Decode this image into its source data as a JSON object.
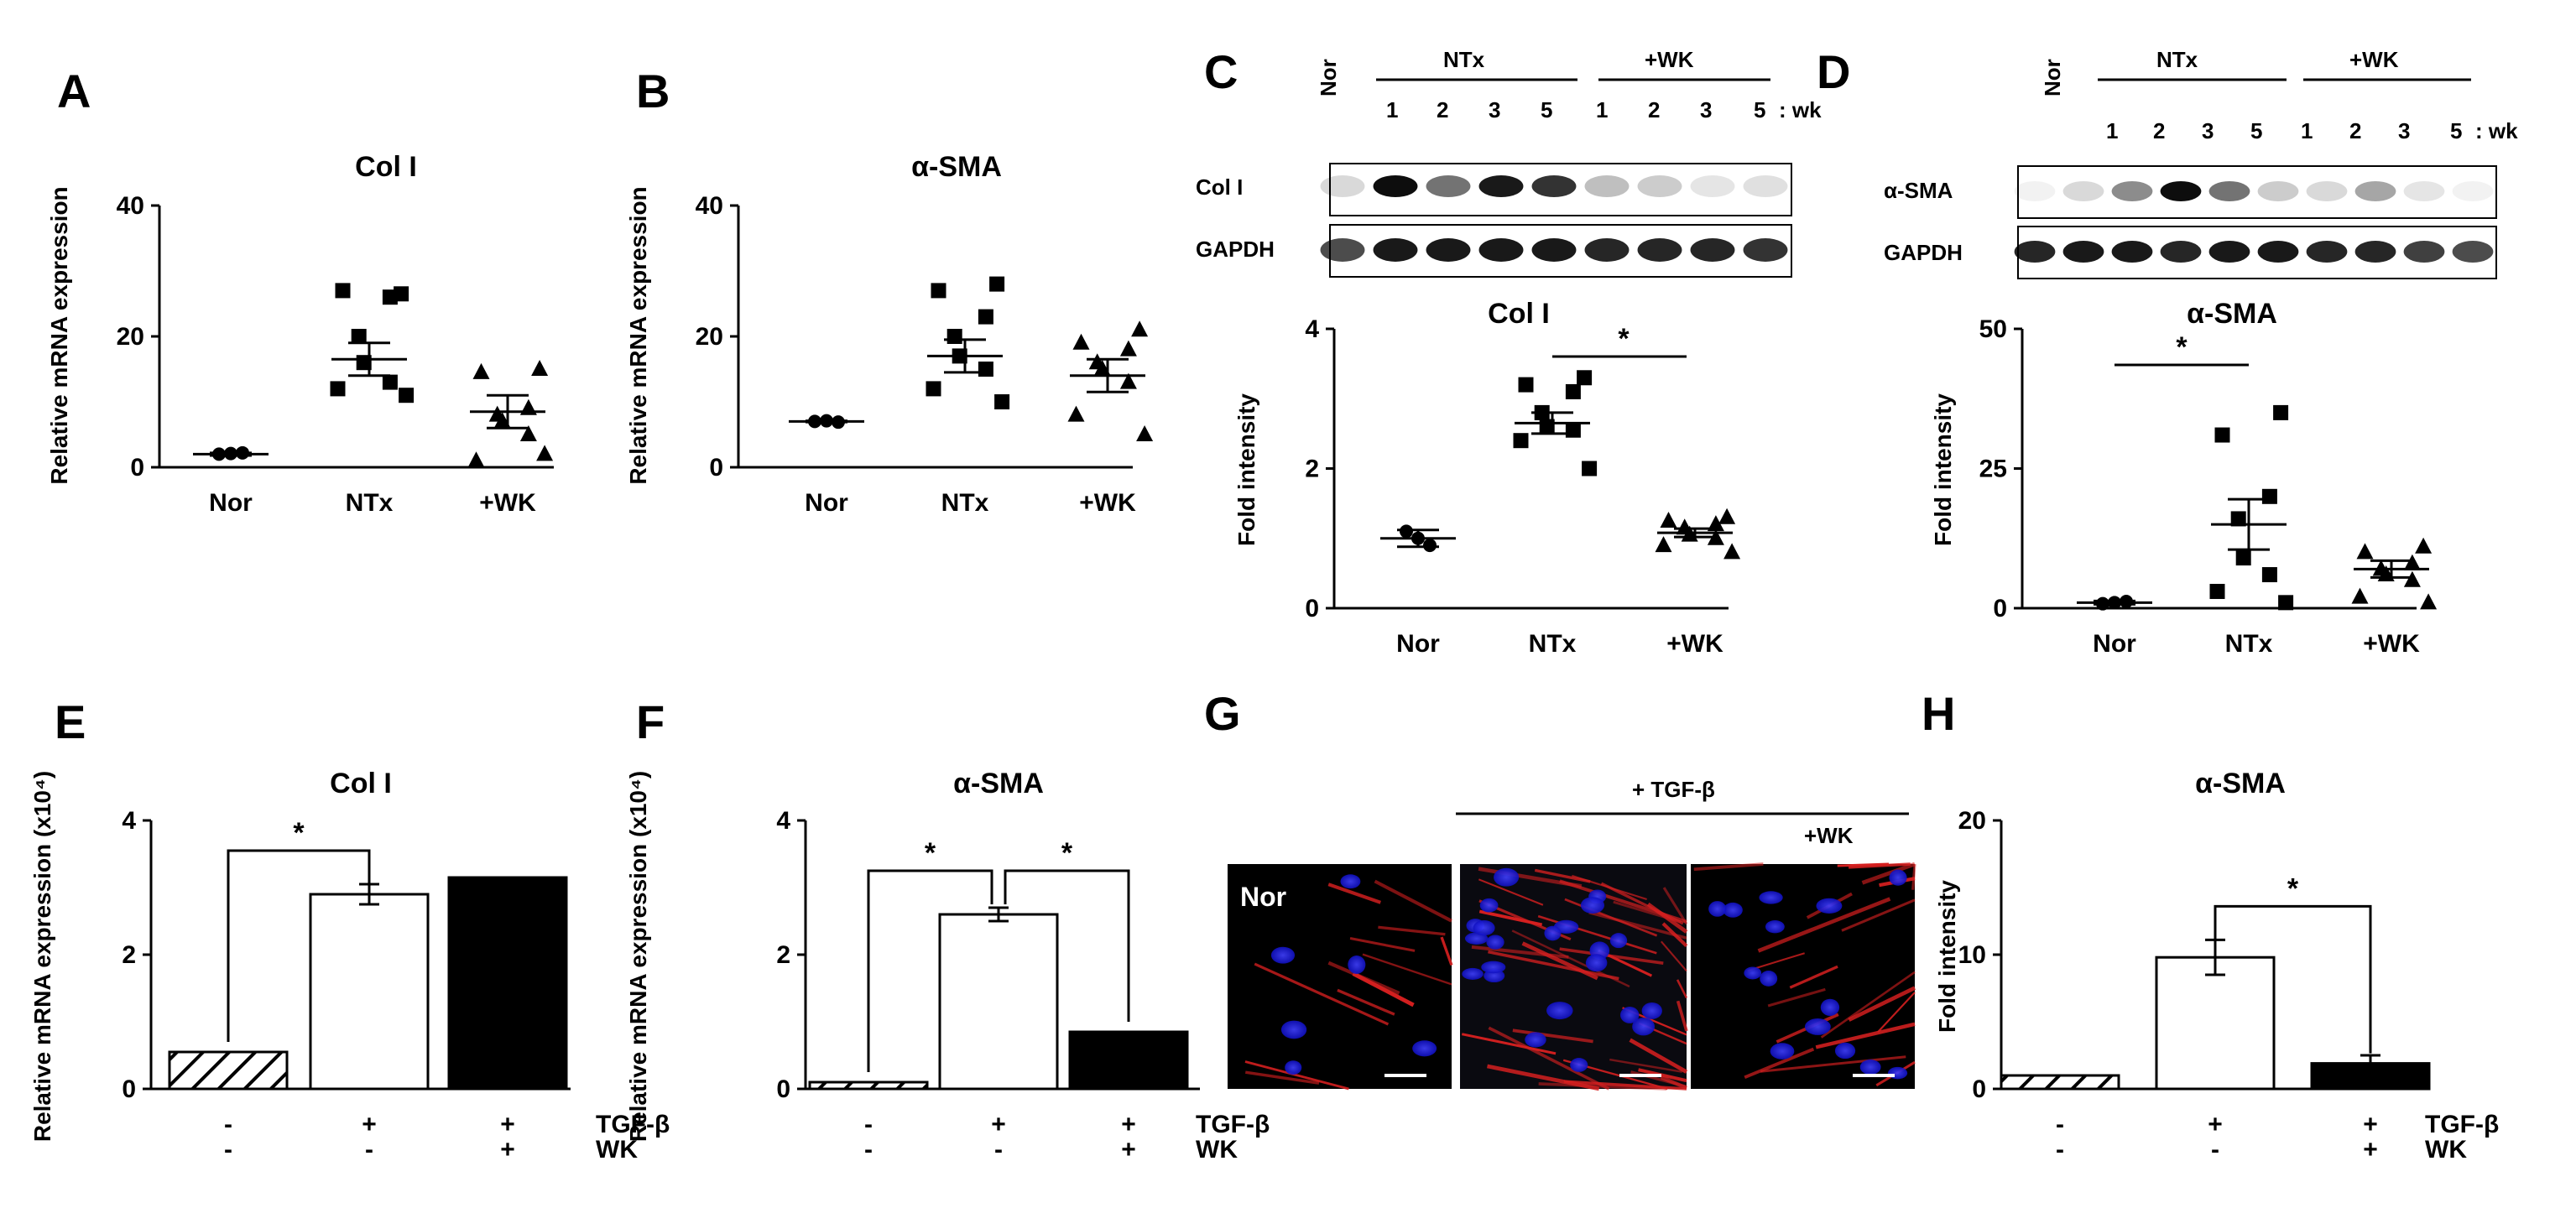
{
  "colors": {
    "blue_nuclei": "#2a2cff",
    "red_actin": "#d62020",
    "bar_black": "#000000",
    "bar_white": "#ffffff"
  },
  "panels": {
    "A": {
      "label": "A"
    },
    "B": {
      "label": "B"
    },
    "C": {
      "label": "C",
      "blot": {
        "lane_groups": [
          "NTx",
          "+WK"
        ],
        "lanes": [
          "Nor",
          "1",
          "2",
          "3",
          "5",
          "1",
          "2",
          "3",
          "5"
        ],
        "suffix": ": wk",
        "rows": [
          "Col I",
          "GAPDH"
        ]
      }
    },
    "D": {
      "label": "D",
      "blot": {
        "lane_groups": [
          "NTx",
          "+WK"
        ],
        "lanes": [
          "Nor",
          "1",
          "2",
          "3",
          "5",
          "1",
          "2",
          "3",
          "5"
        ],
        "suffix": ": wk",
        "rows": [
          "α-SMA",
          "GAPDH"
        ]
      }
    },
    "E": {
      "label": "E"
    },
    "F": {
      "label": "F"
    },
    "G": {
      "label": "G",
      "header": "+ TGF-β",
      "sub": "+WK",
      "panel_labels": [
        "Nor"
      ]
    },
    "H": {
      "label": "H"
    }
  },
  "chart_data": [
    {
      "id": "A",
      "type": "scatter",
      "title": "Col I",
      "ylabel": "Relative mRNA expression",
      "categories": [
        "Nor",
        "NTx",
        "+WK"
      ],
      "ylim": [
        0,
        40
      ],
      "yticks": [
        0,
        20,
        40
      ],
      "series": [
        {
          "values": [
            [
              2,
              2.1,
              2.2
            ],
            [
              26.5,
              27,
              26,
              20,
              16,
              13,
              12,
              11
            ],
            [
              15,
              14.5,
              9,
              8,
              7,
              5,
              1,
              2
            ]
          ]
        }
      ],
      "mean": [
        2,
        16.5,
        8.5
      ],
      "sem": [
        0.2,
        2.5,
        2.5
      ],
      "markers": [
        "circle",
        "square",
        "triangle"
      ]
    },
    {
      "id": "B",
      "type": "scatter",
      "title": "α-SMA",
      "ylabel": "Relative mRNA expression",
      "categories": [
        "Nor",
        "NTx",
        "+WK"
      ],
      "ylim": [
        0,
        40
      ],
      "yticks": [
        0,
        20,
        40
      ],
      "series": [
        {
          "values": [
            [
              7,
              7.1,
              6.9
            ],
            [
              28,
              27,
              23,
              20,
              17,
              15,
              12,
              10
            ],
            [
              21,
              19,
              18,
              16,
              15,
              13,
              8,
              5
            ]
          ]
        }
      ],
      "mean": [
        7,
        17,
        14
      ],
      "sem": [
        0.1,
        2.5,
        2.5
      ],
      "markers": [
        "circle",
        "square",
        "triangle"
      ]
    },
    {
      "id": "C",
      "type": "scatter",
      "title": "Col I",
      "ylabel": "Fold intensity",
      "categories": [
        "Nor",
        "NTx",
        "+WK"
      ],
      "ylim": [
        0,
        4
      ],
      "yticks": [
        0,
        2,
        4
      ],
      "series": [
        {
          "values": [
            [
              1.1,
              1,
              0.9
            ],
            [
              3.3,
              3.2,
              3.1,
              2.8,
              2.6,
              2.55,
              2.4,
              2.0
            ],
            [
              1.3,
              1.25,
              1.2,
              1.15,
              1.05,
              1.0,
              0.9,
              0.8
            ]
          ]
        }
      ],
      "mean": [
        1.0,
        2.65,
        1.08
      ],
      "sem": [
        0.12,
        0.15,
        0.06
      ],
      "markers": [
        "circle",
        "square",
        "triangle"
      ],
      "significance": [
        {
          "from": 1,
          "to": 2,
          "label": "*"
        }
      ]
    },
    {
      "id": "D",
      "type": "scatter",
      "title": "α-SMA",
      "ylabel": "Fold intensity",
      "categories": [
        "Nor",
        "NTx",
        "+WK"
      ],
      "ylim": [
        0,
        50
      ],
      "yticks": [
        0,
        25,
        50
      ],
      "series": [
        {
          "values": [
            [
              0.8,
              1.0,
              1.2
            ],
            [
              35,
              31,
              20,
              16,
              9,
              6,
              3,
              1
            ],
            [
              11,
              10,
              8,
              7,
              6,
              5,
              2,
              1
            ]
          ]
        }
      ],
      "mean": [
        1,
        15,
        7
      ],
      "sem": [
        0.3,
        4.5,
        1.5
      ],
      "markers": [
        "circle",
        "square",
        "triangle"
      ],
      "significance": [
        {
          "from": 0,
          "to": 1,
          "label": "*"
        }
      ]
    },
    {
      "id": "E",
      "type": "bar",
      "title": "Col I",
      "ylabel": "Relative mRNA expression (x10⁴)",
      "ylim": [
        0,
        4
      ],
      "yticks": [
        0,
        2,
        4
      ],
      "values": [
        0.55,
        2.9,
        3.15
      ],
      "errors": [
        0,
        0.15,
        0.03
      ],
      "fills": [
        "hatch",
        "white",
        "black"
      ],
      "conditions": [
        {
          "label": "TGF-β",
          "signs": [
            "-",
            "+",
            "+"
          ]
        },
        {
          "label": "WK",
          "signs": [
            "-",
            "-",
            "+"
          ]
        }
      ],
      "significance": [
        {
          "from": 0,
          "to": 1,
          "label": "*"
        }
      ]
    },
    {
      "id": "F",
      "type": "bar",
      "title": "α-SMA",
      "ylabel": "Relative mRNA expression (x10⁴)",
      "ylim": [
        0,
        4
      ],
      "yticks": [
        0,
        2,
        4
      ],
      "values": [
        0.1,
        2.6,
        0.85
      ],
      "errors": [
        0,
        0.1,
        0.02
      ],
      "fills": [
        "hatch",
        "white",
        "black"
      ],
      "conditions": [
        {
          "label": "TGF-β",
          "signs": [
            "-",
            "+",
            "+"
          ]
        },
        {
          "label": "WK",
          "signs": [
            "-",
            "-",
            "+"
          ]
        }
      ],
      "significance": [
        {
          "from": 0,
          "to": 1,
          "label": "*"
        },
        {
          "from": 1,
          "to": 2,
          "label": "*"
        }
      ]
    },
    {
      "id": "H",
      "type": "bar",
      "title": "α-SMA",
      "ylabel": "Fold intensity",
      "ylim": [
        0,
        20
      ],
      "yticks": [
        0,
        10,
        20
      ],
      "values": [
        1,
        9.8,
        1.9
      ],
      "errors": [
        0,
        1.3,
        0.6
      ],
      "fills": [
        "hatch",
        "white",
        "black"
      ],
      "conditions": [
        {
          "label": "TGF-β",
          "signs": [
            "-",
            "+",
            "+"
          ]
        },
        {
          "label": "WK",
          "signs": [
            "-",
            "-",
            "+"
          ]
        }
      ],
      "significance": [
        {
          "from": 1,
          "to": 2,
          "label": "*"
        }
      ]
    }
  ]
}
